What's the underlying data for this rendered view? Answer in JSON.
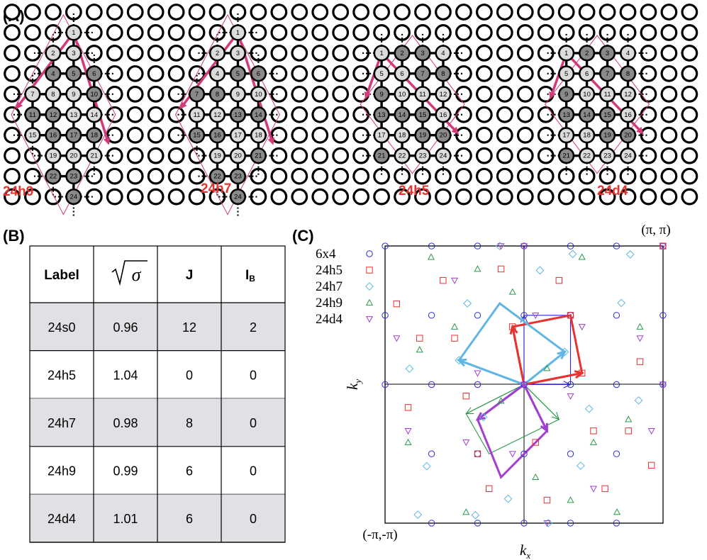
{
  "figure": {
    "panel_a_label": "(A)",
    "panel_b_label": "(B)",
    "panel_c_label": "(C)"
  },
  "panel_a": {
    "clusters": [
      {
        "label": "24h9",
        "sites": [
          {
            "n": "1",
            "dark": false
          },
          {
            "n": "2",
            "dark": false
          },
          {
            "n": "3",
            "dark": false
          },
          {
            "n": "4",
            "dark": true
          },
          {
            "n": "5",
            "dark": true
          },
          {
            "n": "6",
            "dark": true
          },
          {
            "n": "7",
            "dark": false
          },
          {
            "n": "8",
            "dark": false
          },
          {
            "n": "9",
            "dark": false
          },
          {
            "n": "10",
            "dark": true
          },
          {
            "n": "11",
            "dark": true
          },
          {
            "n": "12",
            "dark": true
          },
          {
            "n": "13",
            "dark": false
          },
          {
            "n": "14",
            "dark": false
          },
          {
            "n": "15",
            "dark": false
          },
          {
            "n": "16",
            "dark": true
          },
          {
            "n": "17",
            "dark": true
          },
          {
            "n": "18",
            "dark": true
          },
          {
            "n": "19",
            "dark": false
          },
          {
            "n": "20",
            "dark": false
          },
          {
            "n": "21",
            "dark": false
          },
          {
            "n": "22",
            "dark": true
          },
          {
            "n": "23",
            "dark": true
          },
          {
            "n": "24",
            "dark": true
          }
        ]
      },
      {
        "label": "24h7",
        "sites": [
          {
            "n": "1",
            "dark": false
          },
          {
            "n": "2",
            "dark": false
          },
          {
            "n": "3",
            "dark": false
          },
          {
            "n": "4",
            "dark": false
          },
          {
            "n": "5",
            "dark": true
          },
          {
            "n": "6",
            "dark": true
          },
          {
            "n": "7",
            "dark": true
          },
          {
            "n": "8",
            "dark": true
          },
          {
            "n": "9",
            "dark": false
          },
          {
            "n": "10",
            "dark": false
          },
          {
            "n": "11",
            "dark": false
          },
          {
            "n": "12",
            "dark": false
          },
          {
            "n": "13",
            "dark": true
          },
          {
            "n": "14",
            "dark": true
          },
          {
            "n": "15",
            "dark": true
          },
          {
            "n": "16",
            "dark": true
          },
          {
            "n": "17",
            "dark": false
          },
          {
            "n": "18",
            "dark": false
          },
          {
            "n": "19",
            "dark": false
          },
          {
            "n": "20",
            "dark": false
          },
          {
            "n": "21",
            "dark": true
          },
          {
            "n": "22",
            "dark": true
          },
          {
            "n": "23",
            "dark": true
          },
          {
            "n": "24",
            "dark": true
          }
        ]
      },
      {
        "label": "24h5",
        "sites": [
          {
            "n": "1",
            "dark": false
          },
          {
            "n": "2",
            "dark": true
          },
          {
            "n": "3",
            "dark": true
          },
          {
            "n": "4",
            "dark": false
          },
          {
            "n": "5",
            "dark": false
          },
          {
            "n": "6",
            "dark": false
          },
          {
            "n": "7",
            "dark": true
          },
          {
            "n": "8",
            "dark": true
          },
          {
            "n": "9",
            "dark": true
          },
          {
            "n": "10",
            "dark": false
          },
          {
            "n": "11",
            "dark": false
          },
          {
            "n": "12",
            "dark": false
          },
          {
            "n": "13",
            "dark": true
          },
          {
            "n": "14",
            "dark": true
          },
          {
            "n": "15",
            "dark": true
          },
          {
            "n": "16",
            "dark": false
          },
          {
            "n": "17",
            "dark": false
          },
          {
            "n": "18",
            "dark": false
          },
          {
            "n": "19",
            "dark": true
          },
          {
            "n": "20",
            "dark": true
          },
          {
            "n": "21",
            "dark": true
          },
          {
            "n": "22",
            "dark": false
          },
          {
            "n": "23",
            "dark": false
          },
          {
            "n": "24",
            "dark": false
          }
        ]
      },
      {
        "label": "24d4",
        "sites": [
          {
            "n": "1",
            "dark": false
          },
          {
            "n": "2",
            "dark": true
          },
          {
            "n": "3",
            "dark": true
          },
          {
            "n": "4",
            "dark": false
          },
          {
            "n": "5",
            "dark": false
          },
          {
            "n": "6",
            "dark": false
          },
          {
            "n": "7",
            "dark": true
          },
          {
            "n": "8",
            "dark": true
          },
          {
            "n": "9",
            "dark": true
          },
          {
            "n": "10",
            "dark": false
          },
          {
            "n": "11",
            "dark": false
          },
          {
            "n": "12",
            "dark": false
          },
          {
            "n": "13",
            "dark": true
          },
          {
            "n": "14",
            "dark": true
          },
          {
            "n": "15",
            "dark": true
          },
          {
            "n": "16",
            "dark": false
          },
          {
            "n": "17",
            "dark": false
          },
          {
            "n": "18",
            "dark": false
          },
          {
            "n": "19",
            "dark": true
          },
          {
            "n": "20",
            "dark": true
          },
          {
            "n": "21",
            "dark": true
          },
          {
            "n": "22",
            "dark": false
          },
          {
            "n": "23",
            "dark": false
          },
          {
            "n": "24",
            "dark": false
          }
        ]
      }
    ],
    "colors": {
      "arrow": "#d4397a",
      "site_dark": "#8a8a8a",
      "site_light": "#dcdcdc"
    }
  },
  "panel_b": {
    "headers": {
      "label": "Label",
      "sigma": "σ",
      "j": "J",
      "ib_main": "I",
      "ib_sub": "B"
    },
    "rows": [
      {
        "label": "24s0",
        "sigma": "0.96",
        "j": "12",
        "ib": "2",
        "shaded": true
      },
      {
        "label": "24h5",
        "sigma": "1.04",
        "j": "0",
        "ib": "0",
        "shaded": false
      },
      {
        "label": "24h7",
        "sigma": "0.98",
        "j": "8",
        "ib": "0",
        "shaded": true
      },
      {
        "label": "24h9",
        "sigma": "0.99",
        "j": "6",
        "ib": "0",
        "shaded": false
      },
      {
        "label": "24d4",
        "sigma": "1.01",
        "j": "6",
        "ib": "0",
        "shaded": true
      }
    ],
    "colors": {
      "shade": "#e1e1e5"
    }
  },
  "panel_c": {
    "xlabel": "k",
    "xlabel_sub": "x",
    "ylabel": "k",
    "ylabel_sub": "y",
    "corner_top": "(π, π)",
    "corner_bottom": "(-π,-π)",
    "legend": [
      {
        "name": "6x4",
        "marker": "circle",
        "color": "#2a2ad6"
      },
      {
        "name": "24h5",
        "marker": "square",
        "color": "#e8322f"
      },
      {
        "name": "24h7",
        "marker": "diamond",
        "color": "#62b6e3"
      },
      {
        "name": "24h9",
        "marker": "triangle",
        "color": "#2a9a4a"
      },
      {
        "name": "24d4",
        "marker": "invtriangle",
        "color": "#a23fd0"
      }
    ]
  },
  "chart_data": {
    "type": "scatter",
    "xlabel": "k_x",
    "ylabel": "k_y",
    "xlim": [
      -3.14159,
      3.14159
    ],
    "ylim": [
      -3.14159,
      3.14159
    ],
    "grid": false,
    "legend_position": "top-left",
    "series": [
      {
        "name": "6x4",
        "marker": "circle",
        "color": "#2a2ad6",
        "points": [
          [
            -3.14,
            0
          ],
          [
            -2.09,
            0
          ],
          [
            -1.05,
            0
          ],
          [
            0,
            0
          ],
          [
            1.05,
            0
          ],
          [
            2.09,
            0
          ],
          [
            3.14,
            0
          ],
          [
            -3.14,
            1.57
          ],
          [
            -2.09,
            1.57
          ],
          [
            -1.05,
            1.57
          ],
          [
            0,
            1.57
          ],
          [
            1.05,
            1.57
          ],
          [
            2.09,
            1.57
          ],
          [
            3.14,
            1.57
          ],
          [
            -3.14,
            3.14
          ],
          [
            -2.09,
            3.14
          ],
          [
            -1.05,
            3.14
          ],
          [
            0,
            3.14
          ],
          [
            1.05,
            3.14
          ],
          [
            2.09,
            3.14
          ],
          [
            3.14,
            3.14
          ],
          [
            -2.09,
            -1.57
          ],
          [
            -1.05,
            -1.57
          ],
          [
            0,
            -1.57
          ],
          [
            1.05,
            -1.57
          ],
          [
            2.09,
            -1.57
          ],
          [
            -2.09,
            -3.14
          ],
          [
            -1.05,
            -3.14
          ],
          [
            0,
            -3.14
          ],
          [
            1.05,
            -3.14
          ],
          [
            2.09,
            -3.14
          ]
        ]
      },
      {
        "name": "24h5",
        "marker": "square",
        "color": "#e8322f",
        "points": [
          [
            -0.26,
            1.31
          ],
          [
            0.26,
            -1.31
          ],
          [
            1.31,
            0.26
          ],
          [
            -1.31,
            -0.26
          ],
          [
            -0.52,
            2.62
          ],
          [
            0.52,
            -2.62
          ],
          [
            2.62,
            0.52
          ],
          [
            -2.62,
            -0.52
          ],
          [
            1.05,
            1.57
          ],
          [
            -1.05,
            -1.57
          ],
          [
            1.57,
            -1.05
          ],
          [
            -1.57,
            1.05
          ],
          [
            2.36,
            -1.05
          ],
          [
            -2.36,
            1.05
          ],
          [
            -1.83,
            2.36
          ],
          [
            1.83,
            -2.36
          ],
          [
            -2.88,
            1.83
          ],
          [
            2.88,
            -1.83
          ],
          [
            -0.79,
            -2.36
          ],
          [
            0.79,
            2.36
          ],
          [
            3.14,
            3.14
          ]
        ]
      },
      {
        "name": "24h7",
        "marker": "diamond",
        "color": "#62b6e3",
        "points": [
          [
            0.92,
            0.74
          ],
          [
            -0.92,
            -0.74
          ],
          [
            0.36,
            2.59
          ],
          [
            -0.36,
            -2.59
          ],
          [
            1.28,
            -1.84
          ],
          [
            -1.28,
            1.84
          ],
          [
            2.2,
            1.85
          ],
          [
            -2.2,
            -1.85
          ],
          [
            -1.47,
            0.55
          ],
          [
            1.47,
            -0.55
          ],
          [
            2.59,
            -0.36
          ],
          [
            -2.59,
            0.36
          ],
          [
            1.1,
            2.96
          ],
          [
            -1.1,
            -2.96
          ],
          [
            -2.4,
            -2.95
          ],
          [
            2.4,
            2.95
          ],
          [
            0.55,
            -3.14
          ],
          [
            -0.55,
            3.14
          ]
        ]
      },
      {
        "name": "24h9",
        "marker": "triangle",
        "color": "#2a9a4a",
        "points": [
          [
            -0.52,
            -0.37
          ],
          [
            0.52,
            0.37
          ],
          [
            -1.57,
            1.31
          ],
          [
            1.57,
            -1.31
          ],
          [
            -2.62,
            -1.31
          ],
          [
            2.62,
            1.31
          ],
          [
            -0.26,
            2.1
          ],
          [
            0.26,
            -2.1
          ],
          [
            -2.36,
            0.79
          ],
          [
            2.36,
            -0.79
          ],
          [
            1.05,
            -2.62
          ],
          [
            -1.05,
            2.62
          ],
          [
            -1.31,
            -2.89
          ],
          [
            1.31,
            2.89
          ],
          [
            2.1,
            -2.89
          ],
          [
            -2.1,
            2.89
          ]
        ]
      },
      {
        "name": "24d4",
        "marker": "invtriangle",
        "color": "#a23fd0",
        "points": [
          [
            -1.05,
            0.26
          ],
          [
            1.05,
            -0.26
          ],
          [
            -0.26,
            -1.57
          ],
          [
            0.26,
            1.57
          ],
          [
            -1.31,
            -1.31
          ],
          [
            1.31,
            1.31
          ],
          [
            -2.62,
            -1.05
          ],
          [
            2.62,
            1.05
          ],
          [
            -0.52,
            3.14
          ],
          [
            0.52,
            -3.14
          ],
          [
            -1.57,
            2.36
          ],
          [
            1.57,
            -2.36
          ],
          [
            2.88,
            -1.05
          ],
          [
            -2.88,
            1.05
          ],
          [
            0,
            0
          ],
          [
            3.14,
            0
          ],
          [
            0,
            3.14
          ],
          [
            3.14,
            3.14
          ]
        ]
      }
    ],
    "vectors": [
      {
        "color": "#2a2ad6",
        "polygon": [
          [
            0,
            0
          ],
          [
            0,
            1.57
          ],
          [
            1.05,
            1.57
          ],
          [
            1.05,
            0
          ]
        ],
        "arrows": [
          [
            0,
            0,
            0,
            1.57
          ],
          [
            0,
            0,
            1.05,
            0
          ]
        ]
      },
      {
        "color": "#e8322f",
        "polygon": [
          [
            0,
            0
          ],
          [
            -0.26,
            1.31
          ],
          [
            1.05,
            1.57
          ],
          [
            1.31,
            0.26
          ]
        ],
        "arrows": [
          [
            0,
            0,
            -0.26,
            1.31
          ],
          [
            0,
            0,
            1.31,
            0.26
          ]
        ]
      },
      {
        "color": "#62b6e3",
        "polygon": [
          [
            0,
            0
          ],
          [
            -1.47,
            0.55
          ],
          [
            -0.55,
            1.84
          ],
          [
            0.92,
            0.74
          ]
        ],
        "arrows": [
          [
            0,
            0,
            -1.47,
            0.55
          ],
          [
            0,
            0,
            0.92,
            0.74
          ]
        ]
      },
      {
        "color": "#2a9a4a",
        "polygon": [
          [
            0,
            0
          ],
          [
            -1.31,
            -0.66
          ],
          [
            -0.79,
            -1.57
          ],
          [
            0.79,
            -0.79
          ]
        ],
        "arrows": [
          [
            0,
            0,
            -1.31,
            -0.66
          ],
          [
            0,
            0,
            0.79,
            -0.79
          ]
        ]
      },
      {
        "color": "#a23fd0",
        "polygon": [
          [
            0,
            0
          ],
          [
            -1.05,
            -0.79
          ],
          [
            -0.52,
            -2.1
          ],
          [
            0.52,
            -1.05
          ]
        ],
        "arrows": [
          [
            0,
            0,
            -1.05,
            -0.79
          ],
          [
            0,
            0,
            0.52,
            -1.05
          ]
        ]
      }
    ]
  }
}
